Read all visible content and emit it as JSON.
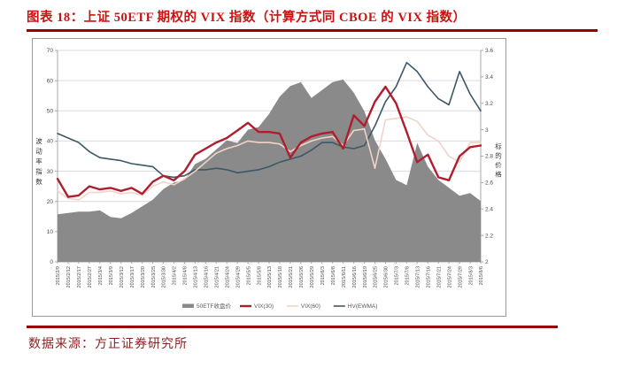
{
  "header": {
    "title": "图表 18：上证 50ETF 期权的 VIX 指数（计算方式同 CBOE 的 VIX 指数）"
  },
  "footer": {
    "source": "数据来源：方正证券研究所"
  },
  "colors": {
    "title_red": "#cc1111",
    "divider_red": "#990000",
    "source_text": "#8b2323",
    "grid": "#dcdcdc",
    "axis_line": "#a8a8a8",
    "tick_text": "#4d4d4d",
    "legend_text": "#595959"
  },
  "chart_data": {
    "type": "line",
    "title": "",
    "grid": true,
    "legend_position": "bottom",
    "x_labels": [
      "2015/2/9",
      "2015/2/12",
      "2015/2/17",
      "2015/2/27",
      "2015/3/4",
      "2015/3/9",
      "2015/3/12",
      "2015/3/17",
      "2015/3/20",
      "2015/3/25",
      "2015/3/30",
      "2015/4/2",
      "2015/4/8",
      "2015/4/13",
      "2015/4/16",
      "2015/4/21",
      "2015/4/24",
      "2015/4/29",
      "2015/5/5",
      "2015/5/8",
      "2015/5/13",
      "2015/5/18",
      "2015/5/21",
      "2015/5/26",
      "2015/5/29",
      "2015/6/3",
      "2015/6/8",
      "2015/6/11",
      "2015/6/16",
      "2015/6/19",
      "2015/6/25",
      "2015/6/30",
      "2015/7/3",
      "2015/7/8",
      "2015/7/13",
      "2015/7/16",
      "2015/7/21",
      "2015/7/24",
      "2015/7/29",
      "2015/8/3",
      "2015/8/6"
    ],
    "left_axis": {
      "label": "波动率指数",
      "min": 0,
      "max": 70,
      "ticks": [
        0,
        10,
        20,
        30,
        40,
        50,
        60,
        70
      ]
    },
    "right_axis": {
      "label": "标的价格",
      "min": 2,
      "max": 3.6,
      "ticks": [
        2,
        2.2,
        2.4,
        2.6,
        2.8,
        3,
        3.2,
        3.4,
        3.6
      ]
    },
    "series": [
      {
        "name": "50ETF收盘价",
        "type": "area",
        "axis": "right",
        "color": "#8a8a8a",
        "values": [
          2.36,
          2.37,
          2.38,
          2.38,
          2.39,
          2.34,
          2.33,
          2.37,
          2.42,
          2.47,
          2.55,
          2.6,
          2.62,
          2.74,
          2.78,
          2.85,
          2.92,
          2.9,
          3.0,
          3.02,
          3.12,
          3.25,
          3.33,
          3.36,
          3.24,
          3.3,
          3.36,
          3.38,
          3.28,
          3.14,
          2.92,
          2.78,
          2.62,
          2.58,
          2.9,
          2.72,
          2.62,
          2.56,
          2.5,
          2.52,
          2.46
        ]
      },
      {
        "name": "VIX(30)",
        "type": "line",
        "axis": "left",
        "color": "#b01e2e",
        "width": 2.4,
        "values": [
          27.5,
          21.5,
          22,
          25,
          24,
          24.5,
          23.5,
          24.5,
          22.5,
          26.5,
          28.5,
          27,
          30,
          35.5,
          37.5,
          39.5,
          41,
          43.5,
          46,
          43,
          43,
          42.5,
          34.5,
          39.5,
          41.5,
          42.5,
          43,
          37.5,
          48.5,
          45,
          53,
          58,
          52.5,
          43,
          33,
          35.5,
          28,
          27,
          35,
          38,
          38.5
        ]
      },
      {
        "name": "VIX(60)",
        "type": "line",
        "axis": "left",
        "color": "#f2d3c8",
        "width": 1.6,
        "values": [
          23.5,
          21,
          20.5,
          23,
          23,
          23.5,
          22.5,
          23,
          22,
          25,
          26.5,
          25.5,
          27.5,
          30,
          33,
          36,
          37.5,
          38.5,
          40,
          39.5,
          39.5,
          39,
          36.5,
          38.5,
          40,
          41,
          41.5,
          38.5,
          43.5,
          44,
          31,
          47,
          47.5,
          48,
          46.5,
          42,
          40,
          35,
          33,
          39.5,
          39.5
        ]
      },
      {
        "name": "HV(EWMA)",
        "type": "line",
        "axis": "left",
        "color": "#3d5866",
        "width": 1.6,
        "values": [
          42.5,
          41,
          39.5,
          36.5,
          34.5,
          34,
          33.5,
          32.5,
          32,
          31.5,
          28.5,
          28,
          28.5,
          30.5,
          30.5,
          31,
          30.5,
          29.5,
          30,
          30.5,
          31.5,
          33,
          34,
          35,
          37,
          39.5,
          39.5,
          38,
          37.5,
          38.5,
          45,
          53,
          58,
          66,
          63,
          58,
          54,
          52,
          63,
          55.5,
          50
        ]
      }
    ]
  }
}
